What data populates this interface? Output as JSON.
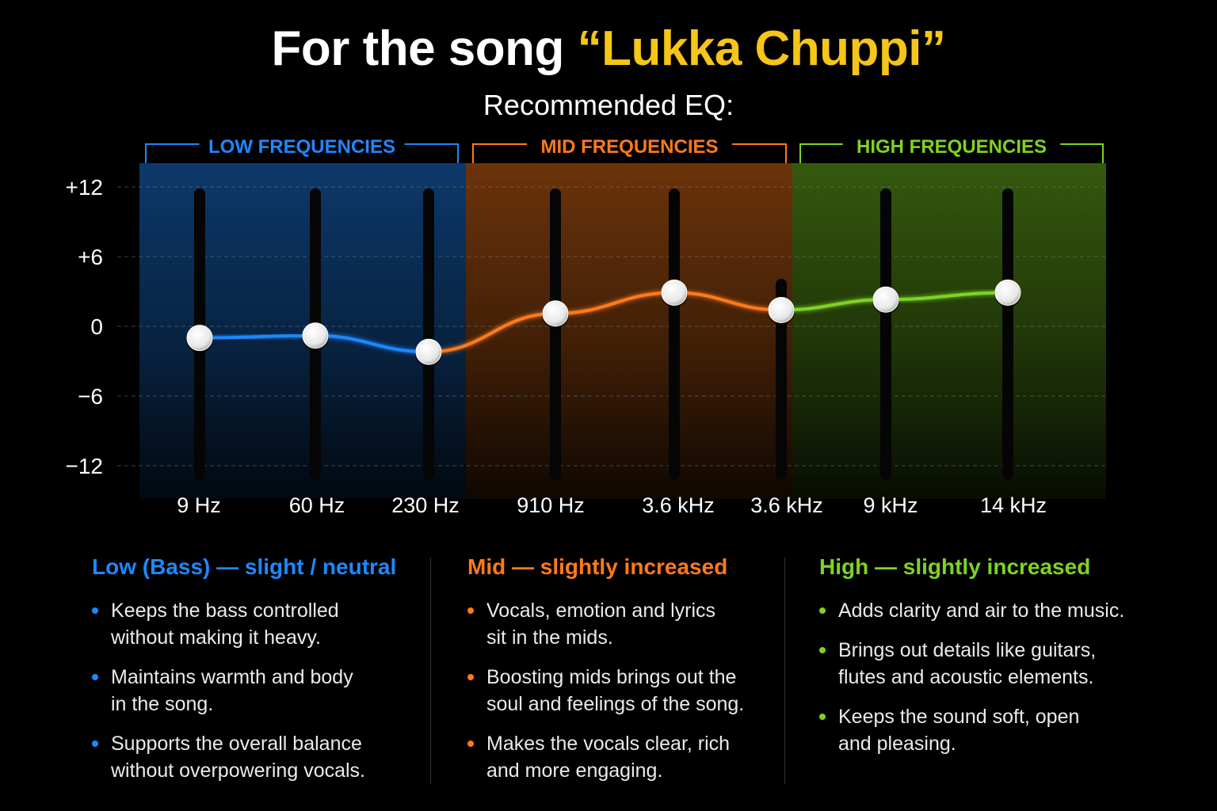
{
  "header": {
    "title_prefix": "For the song ",
    "song_title": "“Lukka Chuppi”",
    "subtitle": "Recommended EQ:"
  },
  "colors": {
    "low": "#1e88ff",
    "mid": "#ff7a1a",
    "high": "#7ed321",
    "song": "#f5c518"
  },
  "chart_data": {
    "type": "line",
    "title": "Recommended EQ:",
    "x": [
      "9 Hz",
      "60 Hz",
      "230 Hz",
      "910 Hz",
      "3.6 kHz",
      "3.6 kHz",
      "9 kHz",
      "14 kHz"
    ],
    "series": [
      {
        "values": [
          -1,
          -0.8,
          -2.2,
          1.1,
          2.9,
          1.4,
          2.3,
          2.9
        ]
      }
    ],
    "ylim": [
      -12,
      12
    ],
    "yticks": [
      "+12",
      "+6",
      "0",
      "−6",
      "−12"
    ],
    "ytick_values": [
      12,
      6,
      0,
      -6,
      -12
    ],
    "grid": true,
    "bands": [
      {
        "label": "LOW FREQUENCIES",
        "color": "#1e88ff",
        "from": 0,
        "to": 2
      },
      {
        "label": "MID FREQUENCIES",
        "color": "#ff7a1a",
        "from": 3,
        "to": 5
      },
      {
        "label": "HIGH FREQUENCIES",
        "color": "#7ed321",
        "from": 6,
        "to": 7
      }
    ]
  },
  "sections": [
    {
      "heading": "Low (Bass) — slight / neutral",
      "color": "#1e88ff",
      "bullets": [
        "Keeps the bass controlled\nwithout making it heavy.",
        "Maintains warmth and body\nin the song.",
        "Supports the overall balance\nwithout overpowering vocals."
      ]
    },
    {
      "heading": "Mid — slightly increased",
      "color": "#ff7a1a",
      "bullets": [
        "Vocals, emotion and lyrics\nsit in the mids.",
        "Boosting mids brings out the\nsoul and feelings of the song.",
        "Makes the vocals clear, rich\nand more engaging."
      ]
    },
    {
      "heading": "High — slightly increased",
      "color": "#7ed321",
      "bullets": [
        "Adds clarity and air to the music.",
        "Brings out details like guitars,\nflutes and acoustic elements.",
        "Keeps the sound soft, open\nand pleasing."
      ]
    }
  ]
}
